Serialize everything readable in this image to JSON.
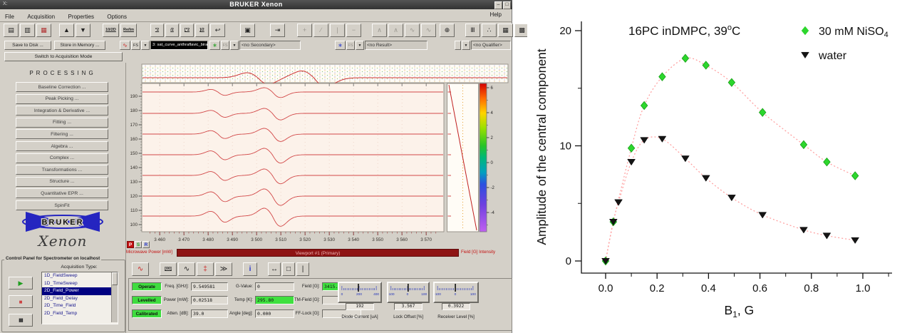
{
  "window": {
    "title": "BRUKER Xenon",
    "icon": "X:",
    "minimize": "–",
    "maximize": "□"
  },
  "menubar": {
    "items": [
      "File",
      "Acquisition",
      "Properties",
      "Options"
    ],
    "help": "Help"
  },
  "toolbar": {
    "buttons": [
      {
        "name": "open-dataset-icon",
        "glyph": "▤",
        "enabled": true
      },
      {
        "name": "import-dataset-icon",
        "glyph": "▥",
        "enabled": true
      },
      {
        "name": "dataset-display-icon",
        "glyph": "▦",
        "enabled": true,
        "color": "#b03030"
      },
      {
        "name": "spectrum-up-icon",
        "glyph": "▲",
        "enabled": true,
        "gap": 10
      },
      {
        "name": "spectrum-down-icon",
        "glyph": "▼",
        "enabled": true
      },
      {
        "name": "toggle-1d-2d-icon",
        "glyph": "10/2D",
        "enabled": true,
        "text": true,
        "w": 23,
        "gap": 16
      },
      {
        "name": "real-imaginary-icon",
        "glyph": "Re/Im",
        "enabled": true,
        "text": true,
        "w": 23
      },
      {
        "name": "scale-times-2-icon",
        "glyph": "*2",
        "enabled": true,
        "text": true,
        "w": 19,
        "gap": 18
      },
      {
        "name": "scale-div-2-icon",
        "glyph": "/2",
        "enabled": true,
        "text": true,
        "w": 19
      },
      {
        "name": "expand-times-2-icon",
        "glyph": "[*2",
        "enabled": true,
        "text": true,
        "w": 19
      },
      {
        "name": "shrink-div-2-icon",
        "glyph": "]/2",
        "enabled": true,
        "text": true,
        "w": 19
      },
      {
        "name": "undo-icon",
        "glyph": "↩",
        "enabled": true
      },
      {
        "name": "print-icon",
        "glyph": "▣",
        "enabled": true,
        "gap": 20
      },
      {
        "name": "export-icon",
        "glyph": "⇥",
        "enabled": true,
        "gap": 20
      },
      {
        "name": "add-marker-icon",
        "glyph": "+",
        "enabled": false,
        "gap": 16
      },
      {
        "name": "slope-tool-icon",
        "glyph": "∕",
        "enabled": false
      },
      {
        "name": "vertical-line-tool-icon",
        "glyph": "|",
        "enabled": false
      },
      {
        "name": "horizontal-line-tool-icon",
        "glyph": "−",
        "enabled": false
      },
      {
        "name": "peak-tool-icon",
        "glyph": "∧",
        "enabled": false,
        "gap": 14
      },
      {
        "name": "peak-wide-tool-icon",
        "glyph": "∧",
        "enabled": false
      },
      {
        "name": "derivative-tool-icon",
        "glyph": "∿",
        "enabled": false
      },
      {
        "name": "derivative2-tool-icon",
        "glyph": "∿",
        "enabled": false
      },
      {
        "name": "grab-tool-icon",
        "glyph": "⊕",
        "enabled": true,
        "gap": 4
      },
      {
        "name": "stack-plots-icon",
        "glyph": "Ⅲ",
        "enabled": true,
        "gap": 14
      },
      {
        "name": "scatter-view-icon",
        "glyph": "∴",
        "enabled": true
      },
      {
        "name": "grid-view-icon",
        "glyph": "▦",
        "enabled": true
      },
      {
        "name": "dense-grid-view-icon",
        "glyph": "▩",
        "enabled": true
      },
      {
        "name": "rect-zoom-icon",
        "glyph": "□",
        "enabled": true
      },
      {
        "name": "step-display-icon",
        "glyph": "⌐",
        "enabled": true
      },
      {
        "name": "slash-zero-icon",
        "glyph": "ø",
        "enabled": true
      },
      {
        "name": "clipboard-icon",
        "glyph": "⇓",
        "enabled": false,
        "gap": 22
      }
    ]
  },
  "actions": {
    "save_to_disk": "Save to Disk ...",
    "store_in_memory": "Store in Memory ...",
    "switch_mode": "Switch to Acquisition Mode"
  },
  "selectors": {
    "primary": {
      "fs": "FS",
      "value": "3: sat_curve_anthraflavic_birad"
    },
    "secondary": {
      "fs": "FS",
      "value": "<no Secondary>"
    },
    "result": {
      "fs": "FS",
      "value": "<no Result>"
    },
    "qualifier": {
      "value": "<no Qualifier>"
    }
  },
  "processing": {
    "title": "PROCESSING",
    "buttons": [
      "Baseline Correction ...",
      "Peak Picking ...",
      "Integration & Derivative ...",
      "Fitting ...",
      "Filtering ...",
      "Algebra ...",
      "Complex ...",
      "Transformations ...",
      "Structure ...",
      "Quantitative EPR ...",
      "SpinFit"
    ],
    "brand": "BRUKER",
    "brand_sub": "Xenon"
  },
  "control_panel": {
    "title": "Control Panel for Spectrometer on  localhost",
    "acquisition_type_label": "Acquisition Type:",
    "acquisition_types": [
      "1D_FieldSweep",
      "1D_TimeSweep",
      "2D_Field_Power",
      "2D_Field_Delay",
      "2D_Time_Field",
      "2D_Field_Temp"
    ],
    "selected_type": "2D_Field_Power",
    "transport": {
      "play": "▶",
      "stop": "■",
      "pause": "▮▮"
    }
  },
  "viewport": {
    "y_ticks": [
      100,
      110,
      120,
      130,
      140,
      150,
      160,
      170,
      180,
      190
    ],
    "x_ticks": [
      3460,
      3470,
      3480,
      3490,
      3500,
      3510,
      3520,
      3530,
      3540,
      3550,
      3560,
      3570
    ],
    "colorbar_ticks": [
      6,
      4,
      2,
      0,
      -2,
      -4
    ],
    "trace_baselines": [
      193,
      178,
      163.5,
      149,
      134.5,
      120,
      106
    ],
    "trace_amplitudes": [
      3,
      3.5,
      4,
      4.5,
      4.5,
      5,
      5.5
    ],
    "feature_centers": [
      3484,
      3506.5
    ],
    "left_axis_label": "Microwave Power [mW]",
    "bottom_bar_label": "Viewport #1  (Primary)",
    "right_axis_label": "Field [G] Intensity",
    "psr_buttons": [
      "P",
      "S",
      "R"
    ]
  },
  "monitor": {
    "status_chips": [
      "Operate",
      "Levelled",
      "Calibrated"
    ],
    "fields": [
      {
        "label": "Freq. [GHz]:",
        "value": "9.549581",
        "green": false
      },
      {
        "label": "Power [mW]:",
        "value": "0.02518",
        "green": false
      },
      {
        "label": "Atten. [dB]:",
        "value": "39.0",
        "green": false
      },
      {
        "label": "G-Value:",
        "value": "0",
        "green": false
      },
      {
        "label": "Temp [K]:",
        "value": "295.80",
        "green": true
      },
      {
        "label": "Angle [deg]:",
        "value": "0.000",
        "green": false
      },
      {
        "label": "Field [G]:",
        "value": "3415.650",
        "green": true
      },
      {
        "label": "TM-Field [G]:",
        "value": "",
        "green": false
      },
      {
        "label": "FF-Lock [G]:",
        "value": "",
        "green": false
      }
    ],
    "meters": [
      {
        "label": "Diode Current [uA]",
        "value": "192",
        "scale": [
          "0",
          "200",
          "400"
        ],
        "min": 0,
        "max": 400
      },
      {
        "label": "Lock Offset [%]",
        "value": "3.567",
        "scale": [
          "-100",
          "0",
          "100"
        ],
        "min": -100,
        "max": 100
      },
      {
        "label": "Receiver Level [%]",
        "value": "0.3922",
        "scale": [
          "-100",
          "0",
          "100"
        ],
        "min": -100,
        "max": 100
      }
    ],
    "toolbar_icons": [
      {
        "name": "tune-display-icon",
        "glyph": "∿",
        "color": "#cc2222",
        "w": 24
      },
      {
        "name": "resonator-icon",
        "glyph": "[00]",
        "text": true,
        "gap": 14,
        "w": 24
      },
      {
        "name": "waveform-icon",
        "glyph": "∿",
        "w": 24
      },
      {
        "name": "temperature-monitor-icon",
        "glyph": "‡",
        "color": "#cc2222",
        "w": 24
      },
      {
        "name": "sweep-transfer-icon",
        "glyph": "≫",
        "w": 24
      },
      {
        "name": "info-icon",
        "glyph": "i",
        "color": "#2233cc",
        "gap": 14,
        "w": 20,
        "bold": true
      },
      {
        "name": "fit-horizontal-icon",
        "glyph": "↔",
        "gap": 14,
        "w": 18
      },
      {
        "name": "fit-window-icon",
        "glyph": "□",
        "w": 18
      },
      {
        "name": "fit-vertical-icon",
        "glyph": "|",
        "w": 18
      }
    ]
  },
  "chart_data": {
    "type": "scatter",
    "annotation": {
      "prefix": "16PC inDMPC, 39",
      "sup": "o",
      "suffix": "C"
    },
    "xlabel": {
      "prefix": "B",
      "sub": "1",
      "suffix": ", G"
    },
    "ylabel": "Amplitude of the central component",
    "x_ticks": [
      0.0,
      0.2,
      0.4,
      0.6,
      0.8,
      1.0
    ],
    "y_ticks": [
      0,
      10,
      20
    ],
    "x_minor_ticks": [
      0.1,
      0.3,
      0.5,
      0.7,
      0.9,
      1.1
    ],
    "y_minor_ticks": [
      5,
      15
    ],
    "xlim": [
      -0.09,
      1.12
    ],
    "ylim": [
      -1.05,
      20
    ],
    "grid": false,
    "legend_position": "top-right",
    "fit_line_color": "#ff9b9b",
    "legend": [
      {
        "label": "30 mM NiSO",
        "label_sub": "4",
        "marker": "diamond",
        "color": "#2dd62d"
      },
      {
        "label": "water",
        "label_sub": "",
        "marker": "triangle-down",
        "color": "#151515"
      }
    ],
    "series": [
      {
        "name": "30 mM NiSO4",
        "marker": "diamond",
        "color": "#2dd62d",
        "edge": "#17a017",
        "points": [
          [
            0,
            0
          ],
          [
            0.03,
            3.4
          ],
          [
            0.1,
            9.8
          ],
          [
            0.15,
            13.5
          ],
          [
            0.22,
            16.0
          ],
          [
            0.31,
            17.6
          ],
          [
            0.39,
            17.0
          ],
          [
            0.49,
            15.5
          ],
          [
            0.61,
            12.9
          ],
          [
            0.77,
            10.1
          ],
          [
            0.86,
            8.6
          ],
          [
            0.97,
            7.4
          ]
        ]
      },
      {
        "name": "water",
        "marker": "triangle-down",
        "color": "#151515",
        "edge": "#000000",
        "points": [
          [
            0,
            0
          ],
          [
            0.03,
            3.4
          ],
          [
            0.05,
            5.1
          ],
          [
            0.1,
            8.6
          ],
          [
            0.15,
            10.5
          ],
          [
            0.22,
            10.6
          ],
          [
            0.31,
            8.9
          ],
          [
            0.39,
            7.2
          ],
          [
            0.49,
            5.5
          ],
          [
            0.61,
            4.0
          ],
          [
            0.77,
            2.7
          ],
          [
            0.86,
            2.2
          ],
          [
            0.97,
            1.8
          ]
        ]
      }
    ]
  }
}
